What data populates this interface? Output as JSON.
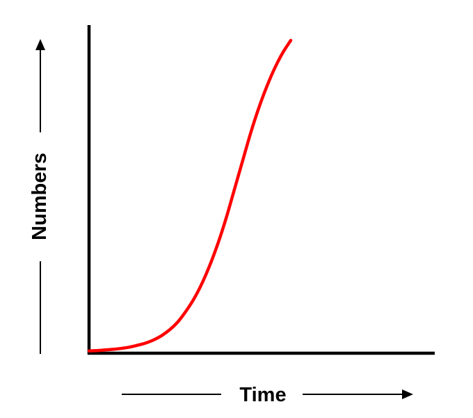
{
  "chart_data": {
    "type": "line",
    "title": "",
    "xlabel": "Time",
    "ylabel": "Numbers",
    "grid": false,
    "legend": "none",
    "ticks": false,
    "colors": {
      "axis": "#000000",
      "curve": "#ff0000"
    },
    "series": [
      {
        "x": [
          0,
          0.04,
          0.08,
          0.12,
          0.16,
          0.2,
          0.24,
          0.28,
          0.32,
          0.36,
          0.4,
          0.44,
          0.48,
          0.52,
          0.56,
          0.6,
          0.64,
          0.68,
          0.72,
          0.76,
          0.8,
          0.84,
          0.88,
          0.92,
          0.96,
          1.0
        ],
        "y": [
          0.003,
          0.004,
          0.006,
          0.008,
          0.011,
          0.015,
          0.021,
          0.028,
          0.038,
          0.052,
          0.071,
          0.096,
          0.13,
          0.17,
          0.22,
          0.28,
          0.35,
          0.43,
          0.52,
          0.61,
          0.7,
          0.78,
          0.85,
          0.91,
          0.96,
          1.0
        ]
      }
    ]
  }
}
